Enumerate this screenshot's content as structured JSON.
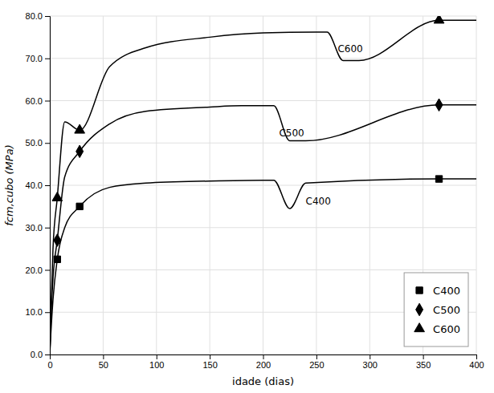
{
  "chart_data": {
    "type": "line",
    "xlabel": "idade (dias)",
    "ylabel": "fcm,cubo (MPa)",
    "xlim": [
      0,
      400
    ],
    "ylim": [
      0.0,
      80.0
    ],
    "xticks": [
      0,
      50,
      100,
      150,
      200,
      250,
      300,
      350,
      400
    ],
    "yticks": [
      {
        "value": 0.0,
        "label": "0.0"
      },
      {
        "value": 10.0,
        "label": "10.0"
      },
      {
        "value": 20.0,
        "label": "20.0"
      },
      {
        "value": 30.0,
        "label": "30.0"
      },
      {
        "value": 40.0,
        "label": "40.0"
      },
      {
        "value": 50.0,
        "label": "50.0"
      },
      {
        "value": 60.0,
        "label": "60.0"
      },
      {
        "value": 70.0,
        "label": "70.0"
      },
      {
        "value": 80.0,
        "label": "80.0"
      }
    ],
    "grid": true,
    "legend": "lower right",
    "series": [
      {
        "type": "line",
        "line_style": "solid",
        "color": "#000000",
        "x": [
          0,
          1,
          3,
          7,
          14,
          28,
          56,
          90,
          150,
          200,
          210,
          225,
          240,
          365,
          400
        ],
        "values": [
          0,
          5,
          13,
          22.5,
          30,
          35.0,
          39.5,
          40.5,
          41.0,
          41.2,
          41.2,
          34.5,
          40.5,
          41.5,
          41.5
        ]
      },
      {
        "type": "line",
        "line_style": "solid",
        "color": "#000000",
        "x": [
          0,
          1,
          3,
          7,
          14,
          28,
          56,
          90,
          150,
          180,
          200,
          210,
          225,
          240,
          365,
          400
        ],
        "values": [
          0,
          8,
          18,
          27.0,
          42,
          48.0,
          54.5,
          57.5,
          58.5,
          58.8,
          58.8,
          58.8,
          50.5,
          50.5,
          59.0,
          59.0
        ]
      },
      {
        "type": "line",
        "line_style": "solid",
        "color": "#000000",
        "x": [
          0,
          1,
          3,
          7,
          14,
          28,
          56,
          90,
          150,
          200,
          250,
          260,
          275,
          290,
          365,
          400
        ],
        "values": [
          0,
          10,
          25,
          37.0,
          55,
          53.0,
          68.0,
          72.5,
          75.0,
          76.0,
          76.2,
          76.2,
          69.5,
          69.5,
          79.0,
          79.0
        ]
      },
      {
        "name": "C400",
        "type": "scatter",
        "marker": "square",
        "color": "#000000",
        "x": [
          7,
          28,
          365
        ],
        "values": [
          22.5,
          35.0,
          41.5
        ]
      },
      {
        "name": "C500",
        "type": "scatter",
        "marker": "diamond",
        "color": "#000000",
        "x": [
          7,
          28,
          365
        ],
        "values": [
          27.0,
          48.0,
          59.0
        ]
      },
      {
        "name": "C600",
        "type": "scatter",
        "marker": "triangle",
        "color": "#000000",
        "x": [
          7,
          28,
          365
        ],
        "values": [
          37.0,
          53.0,
          79.0
        ]
      }
    ],
    "annotations": [
      {
        "text": "C400",
        "x": 240,
        "y": 35.5
      },
      {
        "text": "C500",
        "x": 215,
        "y": 51.5
      },
      {
        "text": "C600",
        "x": 270,
        "y": 71.5
      }
    ]
  }
}
